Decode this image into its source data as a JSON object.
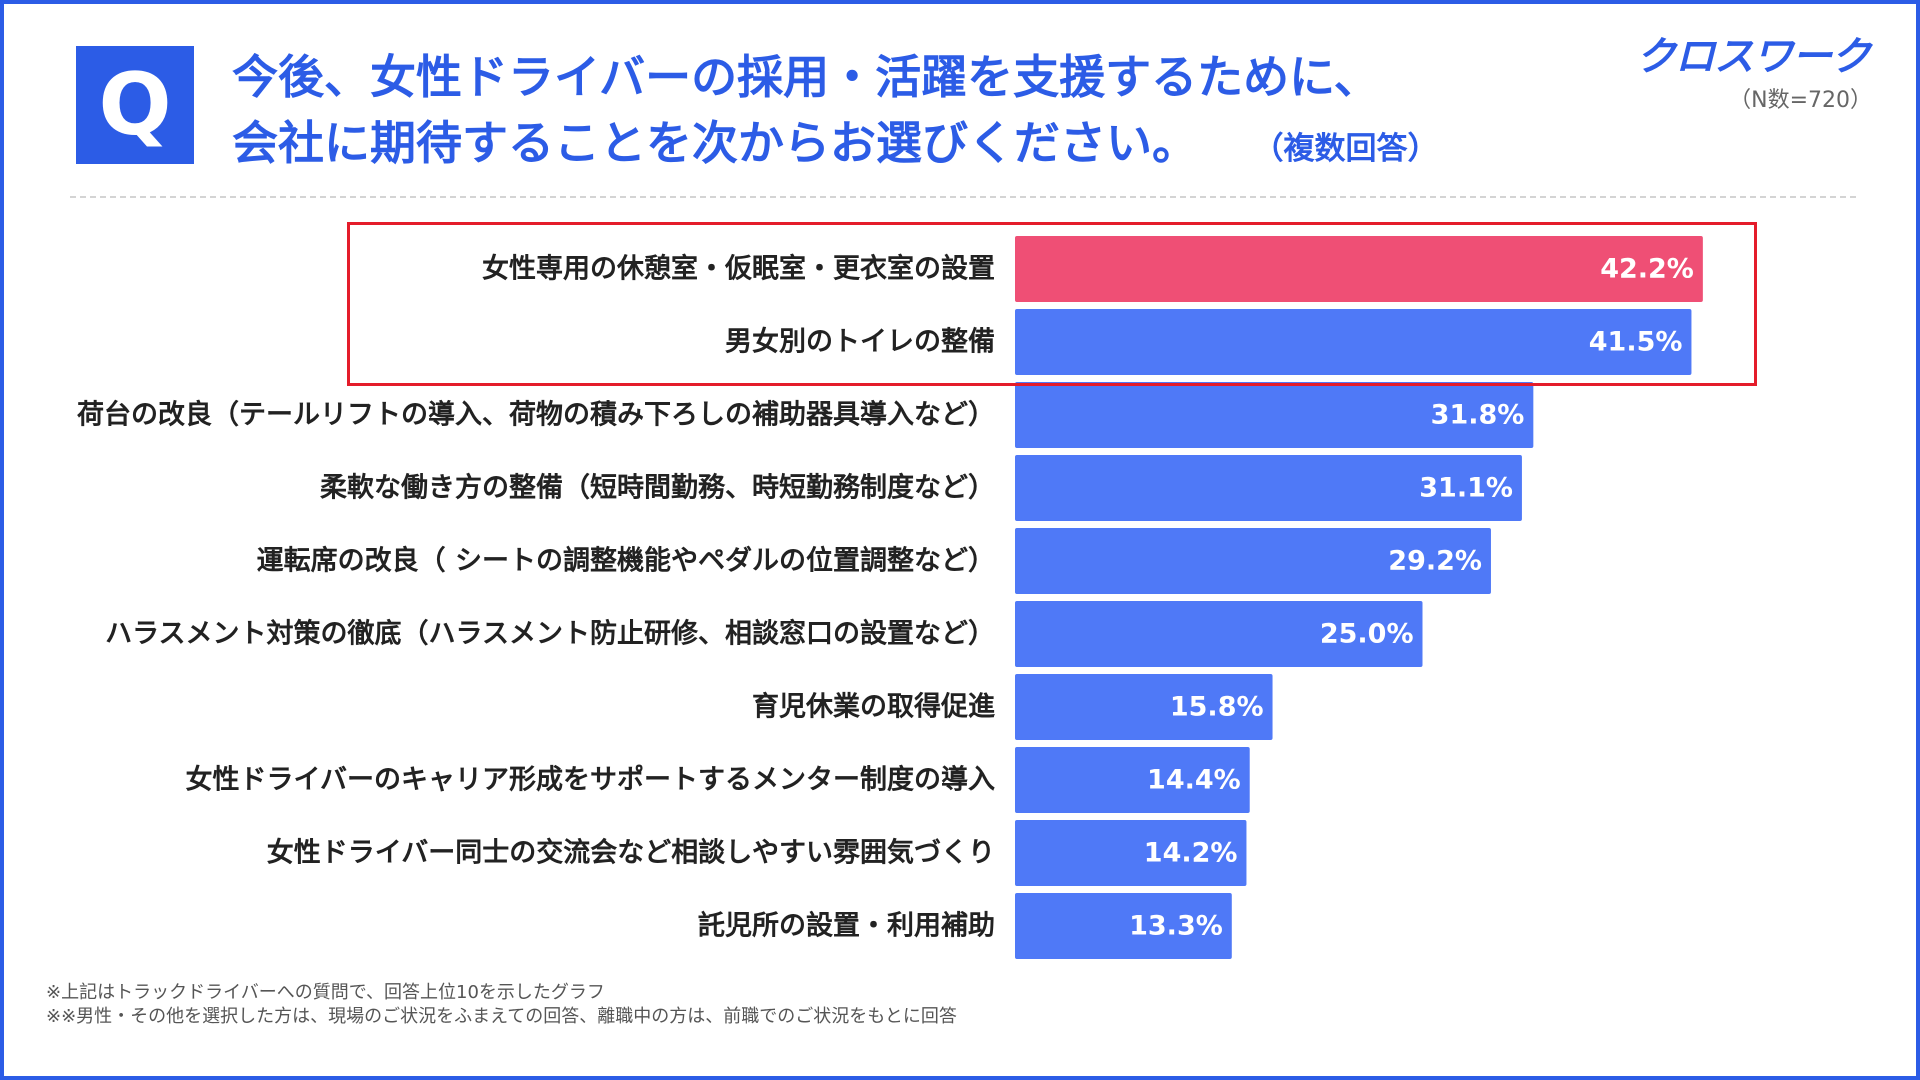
{
  "header": {
    "badge": "Q",
    "question_line1": "今後、女性ドライバーの採用・活躍を支援するために、",
    "question_line2": "会社に期待することを次からお選びください。",
    "question_note": "（複数回答）",
    "brand": "クロスワーク",
    "sample_size": "（N数=720）"
  },
  "chart_data": {
    "type": "bar",
    "orientation": "horizontal",
    "title": "",
    "xlabel": "",
    "ylabel": "",
    "categories": [
      "女性専用の休憩室・仮眠室・更衣室の設置",
      "男女別のトイレの整備",
      "荷台の改良（テールリフトの導入、荷物の積み下ろしの補助器具導入など）",
      "柔軟な働き方の整備（短時間勤務、時短勤務制度など）",
      "運転席の改良（ シートの調整機能やペダルの位置調整など）",
      "ハラスメント対策の徹底（ハラスメント防止研修、相談窓口の設置など）",
      "育児休業の取得促進",
      "女性ドライバーのキャリア形成をサポートするメンター制度の導入",
      "女性ドライバー同士の交流会など相談しやすい雰囲気づくり",
      "託児所の設置・利用補助"
    ],
    "values": [
      42.2,
      41.5,
      31.8,
      31.1,
      29.2,
      25.0,
      15.8,
      14.4,
      14.2,
      13.3
    ],
    "value_labels": [
      "42.2%",
      "41.5%",
      "31.8%",
      "31.1%",
      "29.2%",
      "25.0%",
      "15.8%",
      "14.4%",
      "14.2%",
      "13.3%"
    ],
    "highlighted_indices": [
      0
    ],
    "boxed_indices": [
      0,
      1
    ],
    "unit": "%",
    "xlim": [
      0,
      45
    ],
    "grid": false,
    "legend": "none"
  },
  "colors": {
    "accent": "#2c5ce6",
    "bar": "#4f79f7",
    "bar_highlight": "#ef4f75",
    "box": "#e41c2a"
  },
  "footnotes": {
    "line1": "※上記はトラックドライバーへの質問で、回答上位10を示したグラフ",
    "line2": "※※男性・その他を選択した方は、現場のご状況をふまえての回答、離職中の方は、前職でのご状況をもとに回答"
  }
}
